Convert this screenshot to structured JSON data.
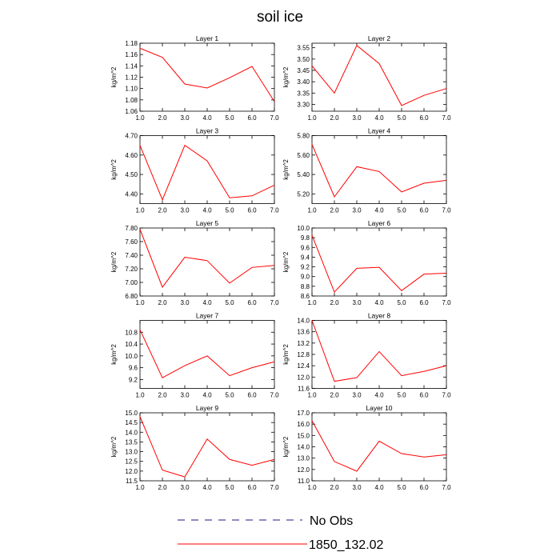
{
  "figure": {
    "title": "soil ice"
  },
  "legend": {
    "entries": [
      {
        "label": "No Obs",
        "color": "#1a1a80",
        "dash": "dashed"
      },
      {
        "label": "1850_132.02",
        "color": "#ff0000",
        "dash": "solid"
      }
    ]
  },
  "chart_data": [
    {
      "type": "line",
      "title": "Layer 1",
      "ylabel": "kg/m^2",
      "x": [
        1,
        2,
        3,
        4,
        5,
        6,
        7
      ],
      "xticks": [
        "1.0",
        "2.0",
        "3.0",
        "4.0",
        "5.0",
        "6.0",
        "7.0"
      ],
      "xlim": [
        1,
        7
      ],
      "ylim": [
        1.06,
        1.18
      ],
      "yticks": [
        "1.06",
        "1.08",
        "1.10",
        "1.12",
        "1.14",
        "1.16",
        "1.18"
      ],
      "series": [
        {
          "values": [
            1.171,
            1.155,
            1.108,
            1.101,
            1.119,
            1.139,
            1.077
          ]
        }
      ]
    },
    {
      "type": "line",
      "title": "Layer 2",
      "ylabel": "kg/m^2",
      "x": [
        1,
        2,
        3,
        4,
        5,
        6,
        7
      ],
      "xticks": [
        "1.0",
        "2.0",
        "3.0",
        "4.0",
        "5.0",
        "6.0",
        "7.0"
      ],
      "xlim": [
        1,
        7
      ],
      "ylim": [
        3.27,
        3.57
      ],
      "yticks": [
        "3.30",
        "3.35",
        "3.40",
        "3.45",
        "3.50",
        "3.55"
      ],
      "series": [
        {
          "values": [
            3.47,
            3.35,
            3.56,
            3.48,
            3.295,
            3.34,
            3.37
          ]
        }
      ]
    },
    {
      "type": "line",
      "title": "Layer 3",
      "ylabel": "kg/m^2",
      "x": [
        1,
        2,
        3,
        4,
        5,
        6,
        7
      ],
      "xticks": [
        "1.0",
        "2.0",
        "3.0",
        "4.0",
        "5.0",
        "6.0",
        "7.0"
      ],
      "xlim": [
        1,
        7
      ],
      "ylim": [
        4.35,
        4.7
      ],
      "yticks": [
        "4.40",
        "4.50",
        "4.60",
        "4.70"
      ],
      "series": [
        {
          "values": [
            4.65,
            4.37,
            4.65,
            4.57,
            4.38,
            4.39,
            4.445
          ]
        }
      ]
    },
    {
      "type": "line",
      "title": "Layer 4",
      "ylabel": "kg/m^2",
      "x": [
        1,
        2,
        3,
        4,
        5,
        6,
        7
      ],
      "xticks": [
        "1.0",
        "2.0",
        "3.0",
        "4.0",
        "5.0",
        "6.0",
        "7.0"
      ],
      "xlim": [
        1,
        7
      ],
      "ylim": [
        5.1,
        5.8
      ],
      "yticks": [
        "5.20",
        "5.40",
        "5.60",
        "5.80"
      ],
      "series": [
        {
          "values": [
            5.71,
            5.17,
            5.48,
            5.43,
            5.22,
            5.31,
            5.34
          ]
        }
      ]
    },
    {
      "type": "line",
      "title": "Layer 5",
      "ylabel": "kg/m^2",
      "x": [
        1,
        2,
        3,
        4,
        5,
        6,
        7
      ],
      "xticks": [
        "1.0",
        "2.0",
        "3.0",
        "4.0",
        "5.0",
        "6.0",
        "7.0"
      ],
      "xlim": [
        1,
        7
      ],
      "ylim": [
        6.8,
        7.8
      ],
      "yticks": [
        "6.80",
        "7.00",
        "7.20",
        "7.40",
        "7.60",
        "7.80"
      ],
      "series": [
        {
          "values": [
            7.78,
            6.93,
            7.37,
            7.32,
            6.99,
            7.22,
            7.25
          ]
        }
      ]
    },
    {
      "type": "line",
      "title": "Layer 6",
      "ylabel": "kg/m^2",
      "x": [
        1,
        2,
        3,
        4,
        5,
        6,
        7
      ],
      "xticks": [
        "1.0",
        "2.0",
        "3.0",
        "4.0",
        "5.0",
        "6.0",
        "7.0"
      ],
      "xlim": [
        1,
        7
      ],
      "ylim": [
        8.6,
        10.0
      ],
      "yticks": [
        "8.6",
        "8.8",
        "9.0",
        "9.2",
        "9.4",
        "9.6",
        "9.8",
        "10.0"
      ],
      "series": [
        {
          "values": [
            9.85,
            8.68,
            9.17,
            9.19,
            8.71,
            9.05,
            9.07
          ]
        }
      ]
    },
    {
      "type": "line",
      "title": "Layer 7",
      "ylabel": "kg/m^2",
      "x": [
        1,
        2,
        3,
        4,
        5,
        6,
        7
      ],
      "xticks": [
        "1.0",
        "2.0",
        "3.0",
        "4.0",
        "5.0",
        "6.0",
        "7.0"
      ],
      "xlim": [
        1,
        7
      ],
      "ylim": [
        8.9,
        11.2
      ],
      "yticks": [
        "9.2",
        "9.6",
        "10.0",
        "10.4",
        "10.8"
      ],
      "series": [
        {
          "values": [
            10.88,
            9.26,
            9.67,
            10.0,
            9.33,
            9.6,
            9.8
          ]
        }
      ]
    },
    {
      "type": "line",
      "title": "Layer 8",
      "ylabel": "kg/m^2",
      "x": [
        1,
        2,
        3,
        4,
        5,
        6,
        7
      ],
      "xticks": [
        "1.0",
        "2.0",
        "3.0",
        "4.0",
        "5.0",
        "6.0",
        "7.0"
      ],
      "xlim": [
        1,
        7
      ],
      "ylim": [
        11.6,
        14.0
      ],
      "yticks": [
        "11.6",
        "12.0",
        "12.4",
        "12.8",
        "13.2",
        "13.6",
        "14.0"
      ],
      "series": [
        {
          "values": [
            14.0,
            11.85,
            11.98,
            12.9,
            12.05,
            12.2,
            12.4
          ]
        }
      ]
    },
    {
      "type": "line",
      "title": "Layer 9",
      "ylabel": "kg/m^2",
      "x": [
        1,
        2,
        3,
        4,
        5,
        6,
        7
      ],
      "xticks": [
        "1.0",
        "2.0",
        "3.0",
        "4.0",
        "5.0",
        "6.0",
        "7.0"
      ],
      "xlim": [
        1,
        7
      ],
      "ylim": [
        11.5,
        15.0
      ],
      "yticks": [
        "11.5",
        "12.0",
        "12.5",
        "13.0",
        "13.5",
        "14.0",
        "14.5",
        "15.0"
      ],
      "series": [
        {
          "values": [
            14.8,
            12.05,
            11.7,
            13.65,
            12.6,
            12.3,
            12.6
          ]
        }
      ]
    },
    {
      "type": "line",
      "title": "Layer 10",
      "ylabel": "kg/m^2",
      "x": [
        1,
        2,
        3,
        4,
        5,
        6,
        7
      ],
      "xticks": [
        "1.0",
        "2.0",
        "3.0",
        "4.0",
        "5.0",
        "6.0",
        "7.0"
      ],
      "xlim": [
        1,
        7
      ],
      "ylim": [
        11.0,
        17.0
      ],
      "yticks": [
        "11.0",
        "12.0",
        "13.0",
        "14.0",
        "15.0",
        "16.0",
        "17.0"
      ],
      "series": [
        {
          "values": [
            16.3,
            12.7,
            11.85,
            14.5,
            13.4,
            13.1,
            13.3
          ]
        }
      ]
    }
  ]
}
